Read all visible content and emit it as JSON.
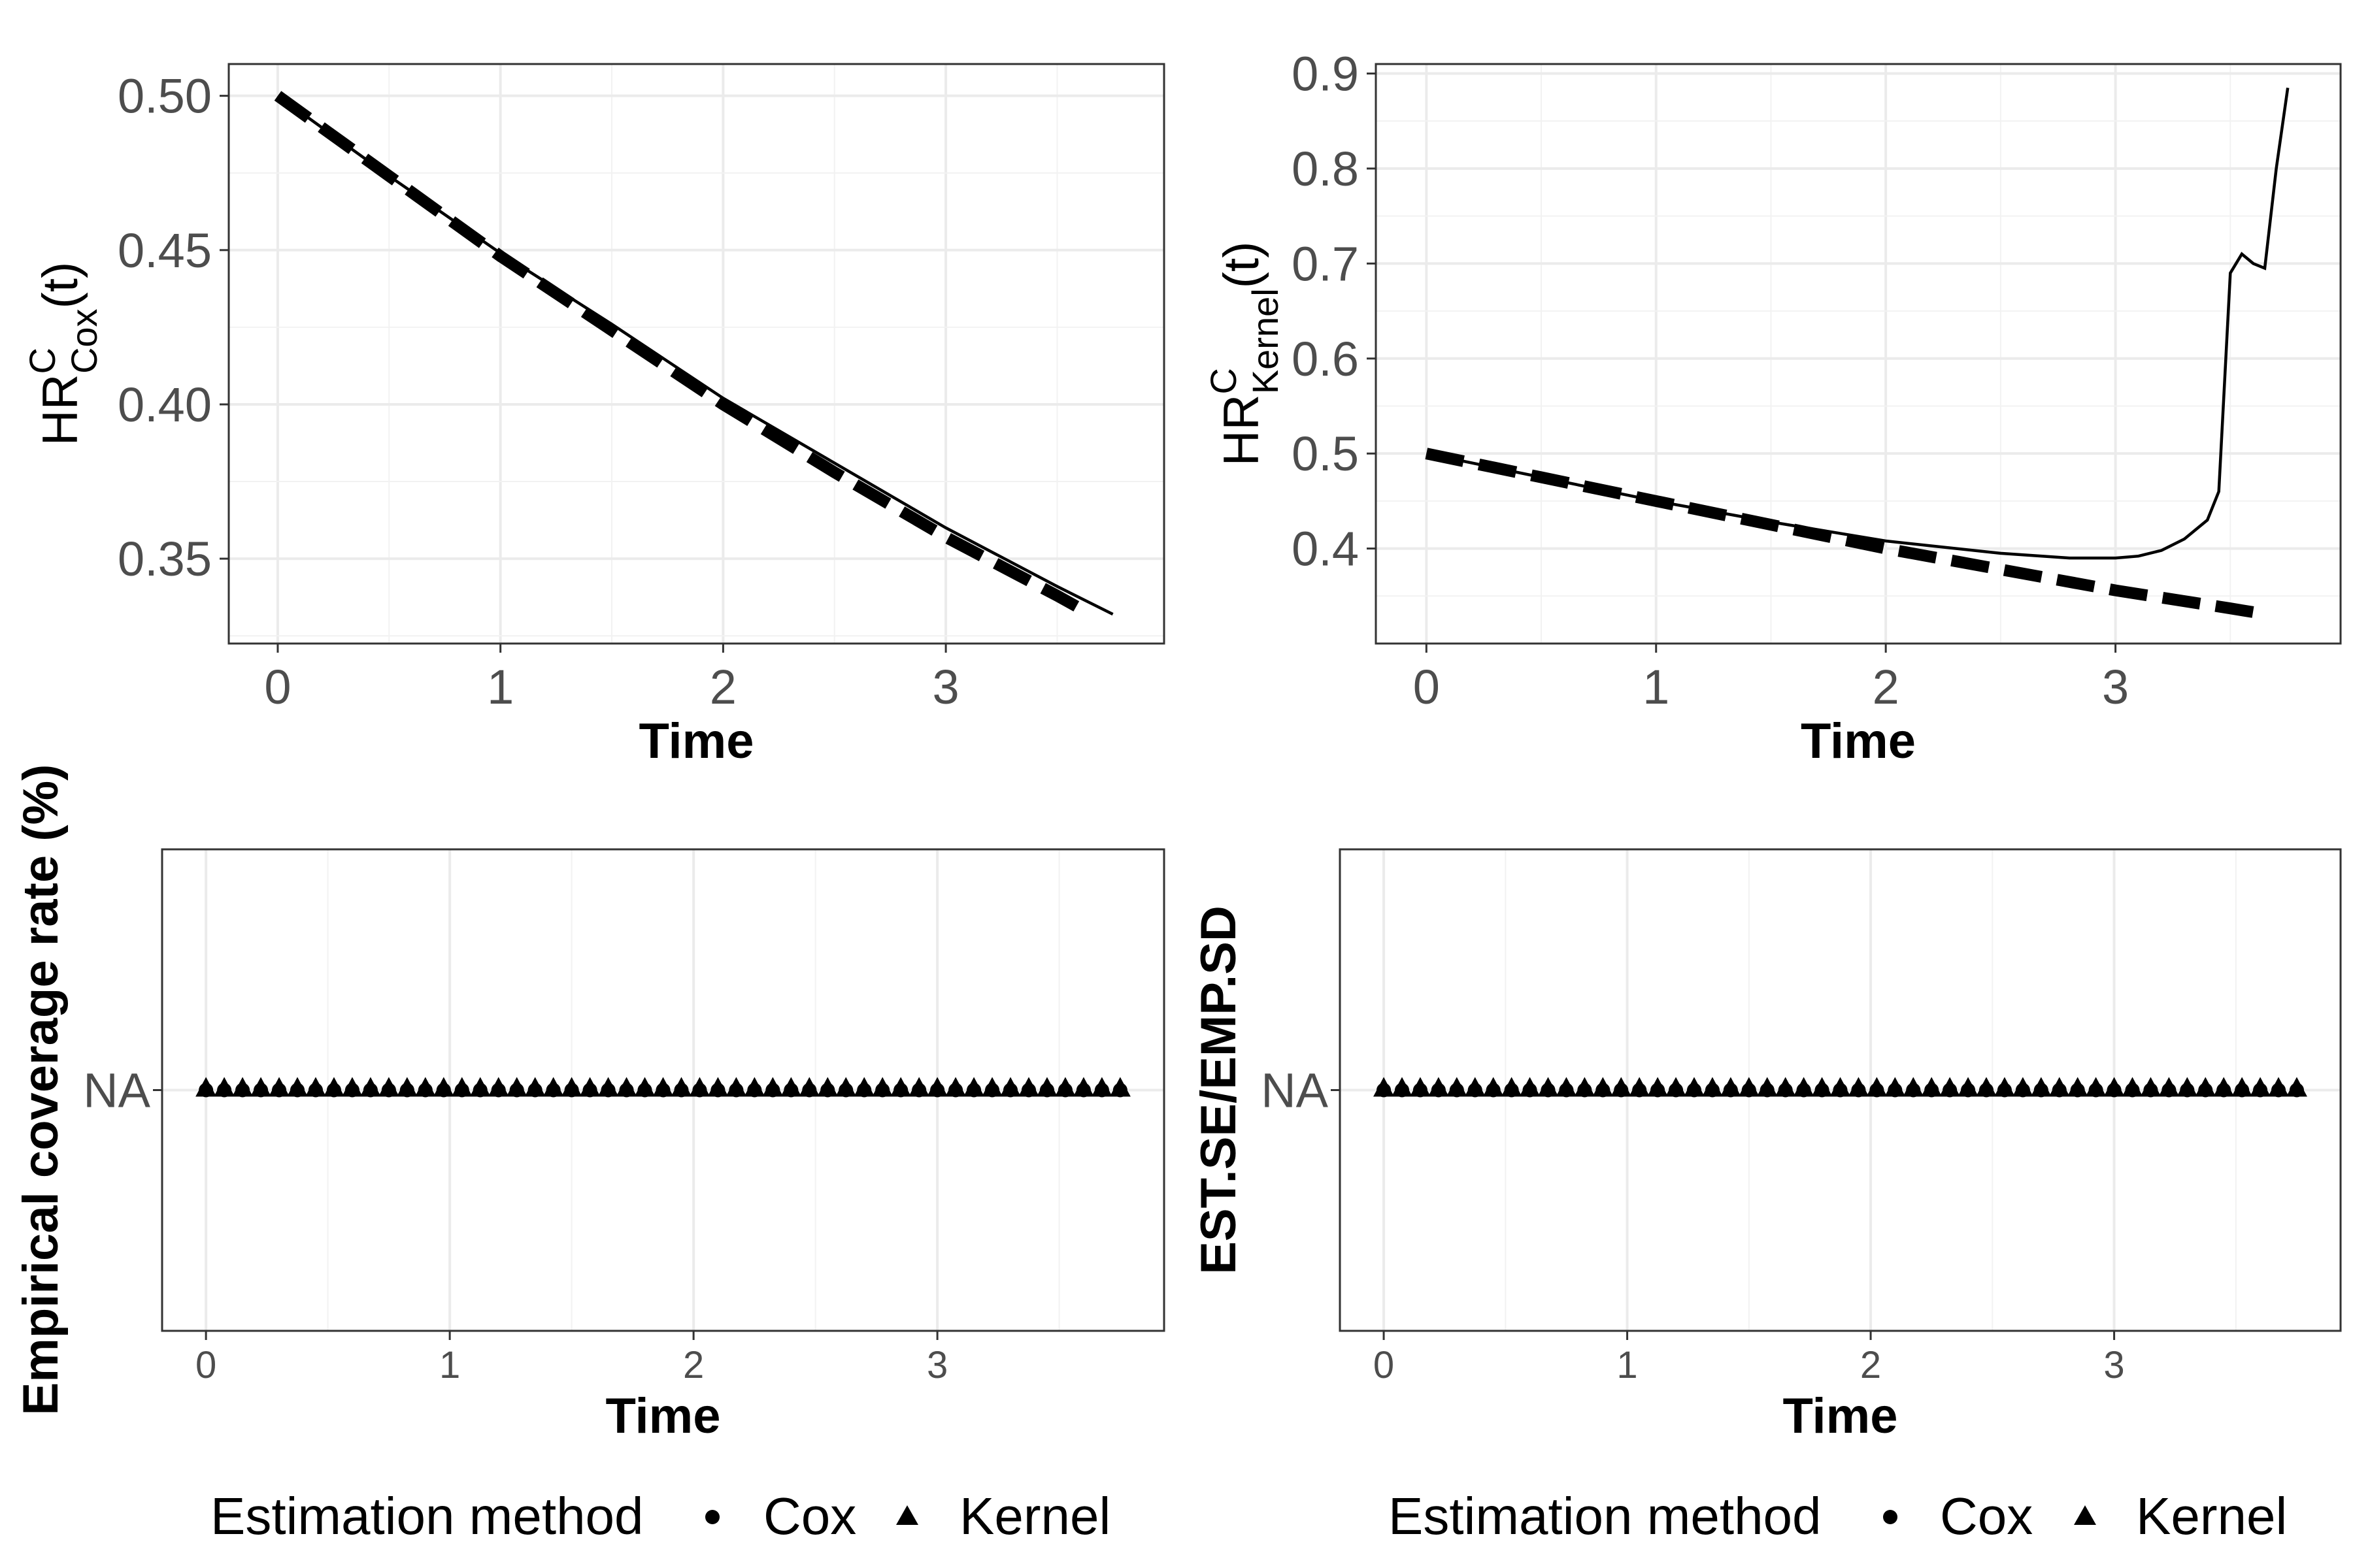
{
  "chart_data": [
    {
      "type": "line",
      "panel": "top-left",
      "ylabel": {
        "main": "HR",
        "sup": "C",
        "sub": "Cox",
        "suffix": "(t)"
      },
      "xlabel": "Time",
      "xlim": [
        -0.22,
        3.98
      ],
      "ylim": [
        0.3225,
        0.5103
      ],
      "xticks": [
        {
          "v": 0,
          "label": "0"
        },
        {
          "v": 1,
          "label": "1"
        },
        {
          "v": 2,
          "label": "2"
        },
        {
          "v": 3,
          "label": "3"
        }
      ],
      "yticks": [
        {
          "v": 0.35,
          "label": "0.35"
        },
        {
          "v": 0.4,
          "label": "0.40"
        },
        {
          "v": 0.45,
          "label": "0.45"
        },
        {
          "v": 0.5,
          "label": "0.50"
        }
      ],
      "series": [
        {
          "style": "solid",
          "x": [
            0,
            0.5,
            1,
            1.5,
            2,
            2.5,
            3,
            3.5,
            3.75
          ],
          "y": [
            0.5,
            0.474,
            0.449,
            0.426,
            0.402,
            0.381,
            0.36,
            0.341,
            0.332
          ]
        },
        {
          "style": "dashed",
          "x": [
            0,
            0.5,
            1,
            1.5,
            2,
            2.5,
            3,
            3.5,
            3.6
          ],
          "y": [
            0.5,
            0.474,
            0.448,
            0.424,
            0.4,
            0.378,
            0.357,
            0.338,
            0.334
          ]
        }
      ]
    },
    {
      "type": "line",
      "panel": "top-right",
      "ylabel": {
        "main": "HR",
        "sup": "C",
        "sub": "Kernel",
        "suffix": "(t)"
      },
      "xlabel": "Time",
      "xlim": [
        -0.22,
        3.98
      ],
      "ylim": [
        0.3,
        0.91
      ],
      "xticks": [
        {
          "v": 0,
          "label": "0"
        },
        {
          "v": 1,
          "label": "1"
        },
        {
          "v": 2,
          "label": "2"
        },
        {
          "v": 3,
          "label": "3"
        }
      ],
      "yticks": [
        {
          "v": 0.4,
          "label": "0.4"
        },
        {
          "v": 0.5,
          "label": "0.5"
        },
        {
          "v": 0.6,
          "label": "0.6"
        },
        {
          "v": 0.7,
          "label": "0.7"
        },
        {
          "v": 0.8,
          "label": "0.8"
        },
        {
          "v": 0.9,
          "label": "0.9"
        }
      ],
      "series": [
        {
          "style": "solid",
          "x": [
            0,
            0.5,
            1,
            1.5,
            2,
            2.5,
            2.8,
            3.0,
            3.1,
            3.2,
            3.3,
            3.4,
            3.45,
            3.5,
            3.55,
            3.6,
            3.65,
            3.7,
            3.75
          ],
          "y": [
            0.5,
            0.475,
            0.45,
            0.428,
            0.408,
            0.395,
            0.39,
            0.39,
            0.392,
            0.398,
            0.41,
            0.43,
            0.46,
            0.69,
            0.71,
            0.7,
            0.695,
            0.8,
            0.885
          ]
        },
        {
          "style": "dashed",
          "x": [
            0,
            0.5,
            1,
            1.5,
            2,
            2.5,
            3,
            3.5,
            3.65
          ],
          "y": [
            0.5,
            0.475,
            0.45,
            0.425,
            0.4,
            0.378,
            0.356,
            0.337,
            0.331
          ]
        }
      ]
    },
    {
      "type": "scatter",
      "panel": "bottom-left",
      "ylabel": "Empirical coverage rate (%)",
      "xlabel": "Time",
      "xlim": [
        -0.18,
        3.93
      ],
      "xticks": [
        {
          "v": 0,
          "label": "0"
        },
        {
          "v": 1,
          "label": "1"
        },
        {
          "v": 2,
          "label": "2"
        },
        {
          "v": 3,
          "label": "3"
        }
      ],
      "ytick_label": "NA",
      "points": {
        "x_start": 0,
        "x_end": 3.75,
        "count": 51,
        "value": "NA"
      }
    },
    {
      "type": "scatter",
      "panel": "bottom-right",
      "ylabel": "EST.SE/EMP.SD",
      "xlabel": "Time",
      "xlim": [
        -0.18,
        3.93
      ],
      "xticks": [
        {
          "v": 0,
          "label": "0"
        },
        {
          "v": 1,
          "label": "1"
        },
        {
          "v": 2,
          "label": "2"
        },
        {
          "v": 3,
          "label": "3"
        }
      ],
      "ytick_label": "NA",
      "points": {
        "x_start": 0,
        "x_end": 3.75,
        "count": 51,
        "value": "NA"
      }
    }
  ],
  "legend": {
    "title": "Estimation method",
    "items": [
      {
        "label": "Cox",
        "shape": "circle"
      },
      {
        "label": "Kernel",
        "shape": "triangle"
      }
    ],
    "position": "bottom"
  }
}
